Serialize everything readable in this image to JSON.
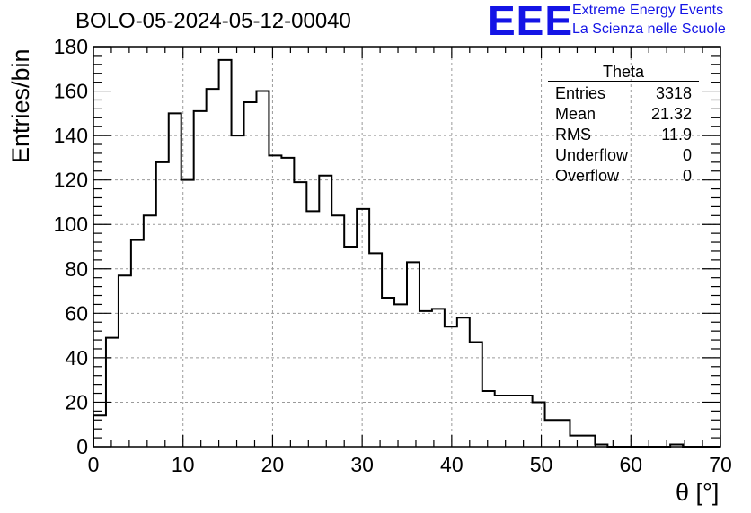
{
  "header": {
    "title": "BOLO-05-2024-05-12-00040",
    "logo_text": "EEE",
    "tagline_1": "Extreme Energy Events",
    "tagline_2": "La Scienza nelle Scuole",
    "brand_color": "#1414e6"
  },
  "stats_box": {
    "title": "Theta",
    "rows": [
      {
        "label": "Entries",
        "value": "3318"
      },
      {
        "label": "Mean",
        "value": "21.32"
      },
      {
        "label": "RMS",
        "value": "11.9"
      },
      {
        "label": "Underflow",
        "value": "0"
      },
      {
        "label": "Overflow",
        "value": "0"
      }
    ]
  },
  "chart_data": {
    "type": "bar",
    "style": "step-histogram",
    "title": "BOLO-05-2024-05-12-00040",
    "xlabel": "θ [°]",
    "ylabel": "Entries/bin",
    "xlim": [
      0,
      70
    ],
    "ylim": [
      0,
      180
    ],
    "xticks": [
      "0",
      "10",
      "20",
      "30",
      "40",
      "50",
      "60",
      "70"
    ],
    "yticks": [
      "0",
      "20",
      "40",
      "60",
      "80",
      "100",
      "120",
      "140",
      "160",
      "180"
    ],
    "grid": true,
    "bin_width": 1.4,
    "bin_edges_start": 0,
    "values": [
      14,
      49,
      77,
      93,
      104,
      128,
      150,
      120,
      151,
      161,
      174,
      140,
      155,
      160,
      131,
      130,
      119,
      106,
      122,
      104,
      90,
      107,
      87,
      67,
      64,
      83,
      61,
      62,
      54,
      58,
      47,
      25,
      23,
      23,
      23,
      20,
      12,
      12,
      5,
      5,
      1,
      0,
      0,
      0,
      0,
      0,
      1,
      0,
      0,
      0
    ]
  }
}
